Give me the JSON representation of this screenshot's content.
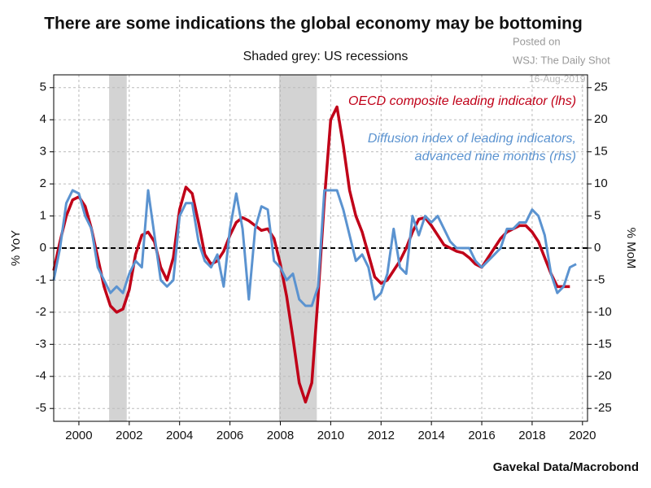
{
  "chart_data": {
    "type": "line",
    "title": "There are some indications the global economy may be bottoming",
    "subtitle": "Shaded grey: US recessions",
    "annotations": [
      "Posted on",
      "WSJ: The Daily Shot",
      "16-Aug-2019"
    ],
    "source": "Gavekal Data/Macrobond",
    "y_label": "% YoY",
    "y2_label": "% MoM",
    "xlim": [
      1999,
      2020.2
    ],
    "xticks": [
      2000,
      2002,
      2004,
      2006,
      2008,
      2010,
      2012,
      2014,
      2016,
      2018,
      2020
    ],
    "ylim": [
      -5.4,
      5.4
    ],
    "yticks": [
      -5,
      -4,
      -3,
      -2,
      -1,
      0,
      1,
      2,
      3,
      4,
      5
    ],
    "y2lim": [
      -27,
      27
    ],
    "y2ticks": [
      -25,
      -20,
      -15,
      -10,
      -5,
      0,
      5,
      10,
      15,
      20,
      25
    ],
    "grid": true,
    "reference_line": 0,
    "recession_color": "#d3d3d3",
    "recessions": [
      {
        "start": 2001.2,
        "end": 2001.9
      },
      {
        "start": 2007.95,
        "end": 2009.45
      }
    ],
    "x": [
      1999,
      1999.25,
      1999.5,
      1999.75,
      2000,
      2000.25,
      2000.5,
      2000.75,
      2001,
      2001.25,
      2001.5,
      2001.75,
      2002,
      2002.25,
      2002.5,
      2002.75,
      2003,
      2003.25,
      2003.5,
      2003.75,
      2004,
      2004.25,
      2004.5,
      2004.75,
      2005,
      2005.25,
      2005.5,
      2005.75,
      2006,
      2006.25,
      2006.5,
      2006.75,
      2007,
      2007.25,
      2007.5,
      2007.75,
      2008,
      2008.25,
      2008.5,
      2008.75,
      2009,
      2009.25,
      2009.5,
      2009.75,
      2010,
      2010.25,
      2010.5,
      2010.75,
      2011,
      2011.25,
      2011.5,
      2011.75,
      2012,
      2012.25,
      2012.5,
      2012.75,
      2013,
      2013.25,
      2013.5,
      2013.75,
      2014,
      2014.25,
      2014.5,
      2014.75,
      2015,
      2015.25,
      2015.5,
      2015.75,
      2016,
      2016.25,
      2016.5,
      2016.75,
      2017,
      2017.25,
      2017.5,
      2017.75,
      2018,
      2018.25,
      2018.5,
      2018.75,
      2019,
      2019.25,
      2019.5,
      2019.75
    ],
    "series": [
      {
        "name": "OECD composite leading indicator (lhs)",
        "color": "#c00018",
        "axis": "y",
        "values": [
          -0.7,
          0.2,
          1.0,
          1.5,
          1.6,
          1.3,
          0.6,
          -0.3,
          -1.2,
          -1.8,
          -2.0,
          -1.9,
          -1.3,
          -0.2,
          0.4,
          0.5,
          0.2,
          -0.6,
          -1.0,
          -0.3,
          1.2,
          1.9,
          1.7,
          0.8,
          -0.2,
          -0.5,
          -0.4,
          -0.1,
          0.4,
          0.8,
          0.95,
          0.85,
          0.7,
          0.55,
          0.6,
          0.3,
          -0.5,
          -1.5,
          -2.8,
          -4.2,
          -4.8,
          -4.2,
          -1.5,
          1.5,
          4.0,
          4.4,
          3.2,
          1.8,
          1.0,
          0.5,
          -0.2,
          -0.9,
          -1.1,
          -1.0,
          -0.7,
          -0.4,
          0.0,
          0.5,
          0.9,
          0.95,
          0.7,
          0.4,
          0.1,
          0.0,
          -0.1,
          -0.15,
          -0.3,
          -0.5,
          -0.6,
          -0.3,
          0.0,
          0.3,
          0.5,
          0.6,
          0.7,
          0.7,
          0.5,
          0.2,
          -0.3,
          -0.8,
          -1.2,
          -1.2,
          -1.2,
          null
        ]
      },
      {
        "name": "Diffusion index of leading indicators,\nadvanced nine months (rhs)",
        "color": "#5b93d0",
        "axis": "y2",
        "values": [
          -5,
          0,
          7,
          9,
          8.5,
          5,
          3,
          -3,
          -5,
          -7,
          -6,
          -7,
          -4,
          -2,
          -3,
          9,
          2,
          -5,
          -6,
          -5,
          5,
          7,
          7,
          1,
          -2,
          -3,
          -1,
          -6,
          3,
          8.5,
          3,
          -8,
          3,
          6.5,
          6,
          -2,
          -3,
          -5,
          -4,
          -8,
          -9,
          -9,
          -6,
          9,
          9,
          9,
          6,
          2,
          -2,
          -1,
          -3,
          -8,
          -7,
          -4,
          3,
          -3,
          -4,
          5,
          2,
          5,
          4,
          5,
          3,
          1,
          0,
          0,
          0,
          -2,
          -3,
          -2,
          -1,
          0,
          3,
          3,
          4,
          4,
          6,
          5,
          2,
          -4,
          -7,
          -6,
          -3,
          -2.5
        ]
      }
    ]
  }
}
